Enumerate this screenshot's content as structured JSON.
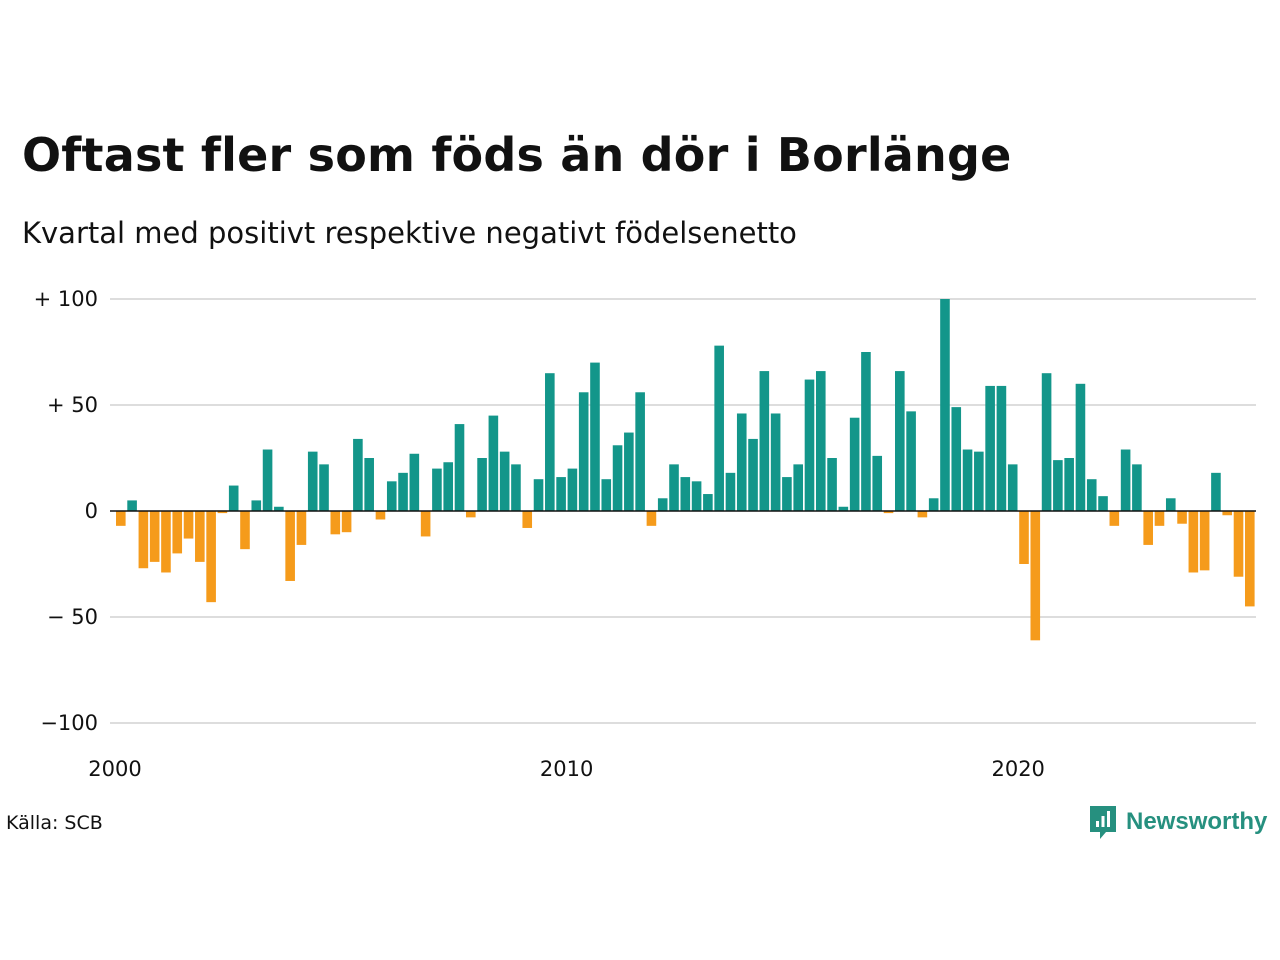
{
  "title": "Oftast fler som föds än dör i Borlänge",
  "subtitle": "Kvartal med positivt respektive negativt födelsenetto",
  "source": "Källa: SCB",
  "brand": {
    "name": "Newsworthy",
    "icon": "newsworthy-logo-icon"
  },
  "colors": {
    "positive": "#13968a",
    "negative": "#f59b1b",
    "grid": "#dddddd",
    "zero": "#111111"
  },
  "chart_data": {
    "type": "bar",
    "x_start": "2000Q1",
    "y_ticks": [
      {
        "value": 100,
        "label": "+ 100"
      },
      {
        "value": 50,
        "label": "+  50"
      },
      {
        "value": 0,
        "label": "0"
      },
      {
        "value": -50,
        "label": "− 50"
      },
      {
        "value": -100,
        "label": "−100"
      }
    ],
    "x_ticks": [
      "2000",
      "2010",
      "2020"
    ],
    "ylim": [
      -100,
      100
    ],
    "grid": true,
    "values": [
      -7,
      5,
      -27,
      -24,
      -29,
      -20,
      -13,
      -24,
      -43,
      -1,
      12,
      -18,
      5,
      29,
      2,
      -33,
      -16,
      28,
      22,
      -11,
      -10,
      34,
      25,
      -4,
      14,
      18,
      27,
      -12,
      20,
      23,
      41,
      -3,
      25,
      45,
      28,
      22,
      -8,
      15,
      65,
      16,
      20,
      56,
      70,
      15,
      31,
      37,
      56,
      -7,
      6,
      22,
      16,
      14,
      8,
      78,
      18,
      46,
      34,
      66,
      46,
      16,
      22,
      62,
      66,
      25,
      2,
      44,
      75,
      26,
      -1,
      66,
      47,
      -3,
      6,
      100,
      49,
      29,
      28,
      59,
      59,
      22,
      -25,
      -61,
      65,
      24,
      25,
      60,
      15,
      7,
      -7,
      29,
      22,
      -16,
      -7,
      6,
      -6,
      -29,
      -28,
      18,
      -2,
      -31,
      -45
    ]
  }
}
